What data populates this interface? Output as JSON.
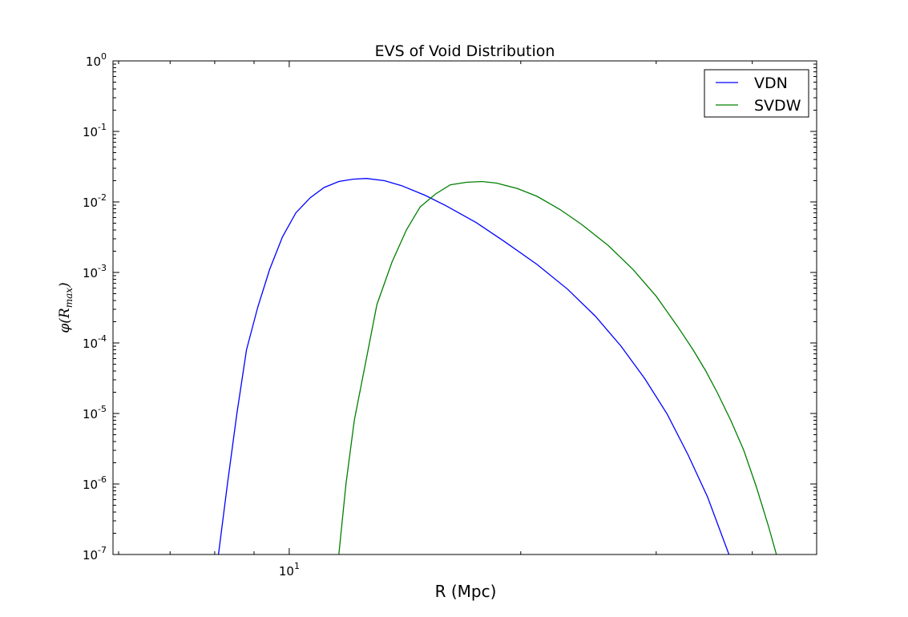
{
  "chart_data": {
    "type": "line",
    "title": "EVS of Void Distribution",
    "xlabel": "R (Mpc)",
    "ylabel": "φ(R",
    "ylabel_sub": "max",
    "ylabel_close": ")",
    "x_scale": "log",
    "y_scale": "log",
    "xlim": [
      5.9,
      48.5
    ],
    "ylim": [
      1e-07,
      1
    ],
    "x_ticks": [
      {
        "value": 10,
        "base": "10",
        "exp": "1"
      }
    ],
    "y_ticks": [
      {
        "value": 1,
        "base": "10",
        "exp": "0"
      },
      {
        "value": 0.1,
        "base": "10",
        "exp": "-1"
      },
      {
        "value": 0.01,
        "base": "10",
        "exp": "-2"
      },
      {
        "value": 0.001,
        "base": "10",
        "exp": "-3"
      },
      {
        "value": 0.0001,
        "base": "10",
        "exp": "-4"
      },
      {
        "value": 1e-05,
        "base": "10",
        "exp": "-5"
      },
      {
        "value": 1e-06,
        "base": "10",
        "exp": "-6"
      },
      {
        "value": 1e-07,
        "base": "10",
        "exp": "-7"
      }
    ],
    "grid": false,
    "legend_position": "top-right",
    "series": [
      {
        "name": "VDN",
        "color": "#0000ff",
        "points": [
          [
            8.09,
            1e-07
          ],
          [
            8.31,
            1e-06
          ],
          [
            8.55,
            1e-05
          ],
          [
            8.8,
            8e-05
          ],
          [
            9.1,
            0.00032
          ],
          [
            9.43,
            0.0011
          ],
          [
            9.8,
            0.0032
          ],
          [
            10.2,
            0.007
          ],
          [
            10.65,
            0.0115
          ],
          [
            11.1,
            0.016
          ],
          [
            11.6,
            0.0195
          ],
          [
            12.1,
            0.021
          ],
          [
            12.6,
            0.0215
          ],
          [
            13.3,
            0.02
          ],
          [
            14.0,
            0.017
          ],
          [
            15.0,
            0.0125
          ],
          [
            16.0,
            0.0088
          ],
          [
            17.5,
            0.0051
          ],
          [
            19.0,
            0.0028
          ],
          [
            21.0,
            0.0013
          ],
          [
            23.0,
            0.00058
          ],
          [
            25.0,
            0.00024
          ],
          [
            27.0,
            9e-05
          ],
          [
            29.0,
            3.1e-05
          ],
          [
            31.0,
            9.8e-06
          ],
          [
            33.0,
            2.6e-06
          ],
          [
            35.0,
            6.5e-07
          ],
          [
            37.3,
            1e-07
          ]
        ]
      },
      {
        "name": "SVDW",
        "color": "#008000",
        "points": [
          [
            11.6,
            1e-07
          ],
          [
            11.85,
            1e-06
          ],
          [
            12.15,
            8e-06
          ],
          [
            12.6,
            6e-05
          ],
          [
            13.0,
            0.00035
          ],
          [
            13.6,
            0.0014
          ],
          [
            14.2,
            0.004
          ],
          [
            14.8,
            0.0085
          ],
          [
            15.5,
            0.013
          ],
          [
            16.2,
            0.0175
          ],
          [
            17.0,
            0.019
          ],
          [
            17.8,
            0.0195
          ],
          [
            18.6,
            0.0185
          ],
          [
            19.8,
            0.0155
          ],
          [
            21.0,
            0.012
          ],
          [
            22.5,
            0.0078
          ],
          [
            24.0,
            0.0048
          ],
          [
            26.0,
            0.0024
          ],
          [
            28.0,
            0.0011
          ],
          [
            30.0,
            0.00046
          ],
          [
            32.0,
            0.00017
          ],
          [
            33.5,
            8e-05
          ],
          [
            34.8,
            4e-05
          ],
          [
            36.0,
            2e-05
          ],
          [
            37.5,
            8e-06
          ],
          [
            39.0,
            3e-06
          ],
          [
            40.5,
            9e-07
          ],
          [
            42.0,
            2.5e-07
          ],
          [
            43.0,
            1e-07
          ]
        ]
      }
    ]
  }
}
